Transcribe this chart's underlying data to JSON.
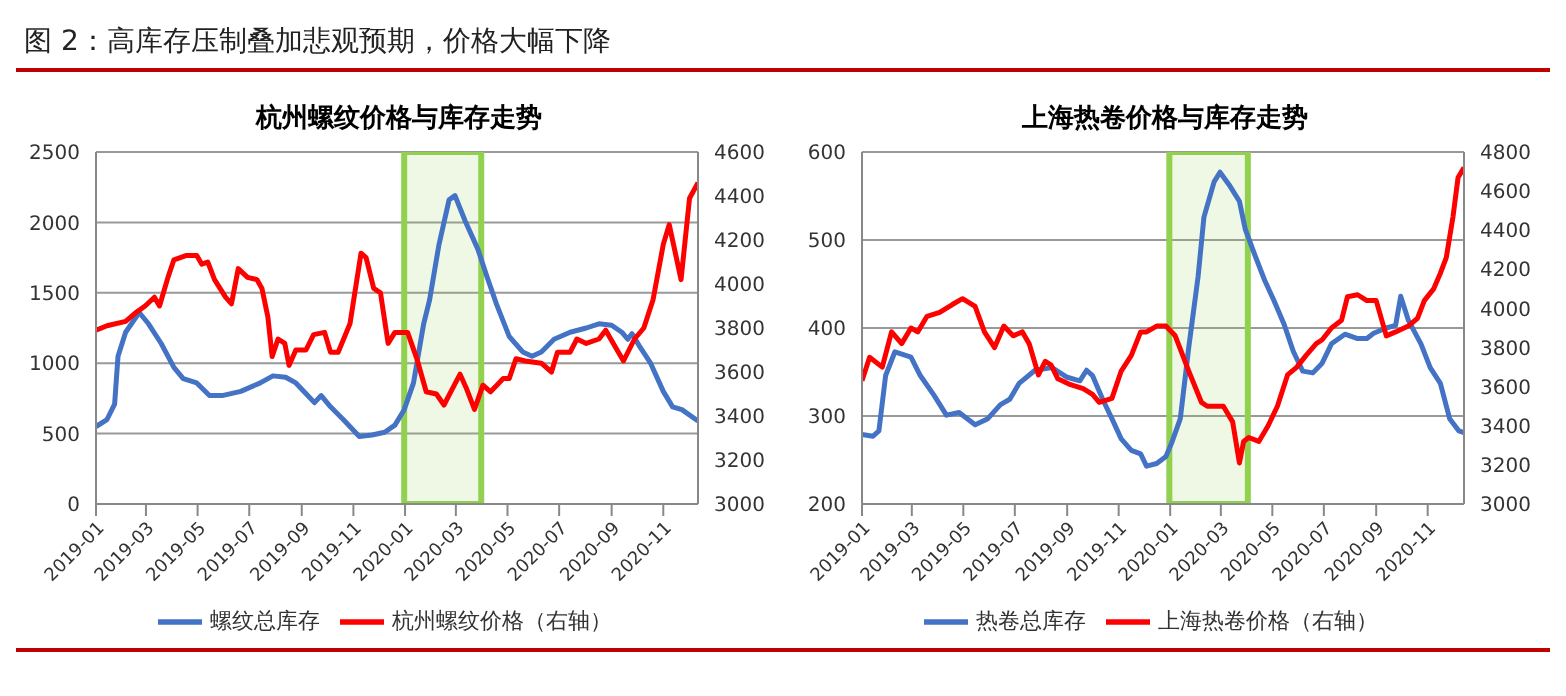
{
  "chart_data": [
    {
      "type": "line",
      "title": "杭州螺纹价格与库存走势",
      "annotations": [
        "图 2：高库存压制叠加悲观预期，价格大幅下降"
      ],
      "xlim": [
        "2019-01-01",
        "2020-12-12"
      ],
      "xticks": [
        "2019-01",
        "2019-03",
        "2019-05",
        "2019-07",
        "2019-09",
        "2019-11",
        "2020-01",
        "2020-03",
        "2020-05",
        "2020-07",
        "2020-09",
        "2020-11"
      ],
      "ylim": [
        0,
        2500
      ],
      "yticks": [
        0,
        500,
        1000,
        1500,
        2000,
        2500
      ],
      "y2lim": [
        3000,
        4600
      ],
      "y2ticks": [
        3000,
        3200,
        3400,
        3600,
        3800,
        4000,
        4200,
        4400,
        4600
      ],
      "grid": "y",
      "legend": "bottom",
      "marker": "none",
      "line_style": "solid",
      "bands": [
        {
          "axis": "x",
          "from": "2019-12-31",
          "to": "2020-03-31",
          "color": "#92d050"
        }
      ],
      "series": [
        {
          "name": "螺纹总库存",
          "color": "#4472c4",
          "x": [
            "2019-01-01",
            "2019-01-14",
            "2019-01-23",
            "2019-01-27",
            "2019-02-05",
            "2019-02-21",
            "2019-03-04",
            "2019-03-19",
            "2019-04-03",
            "2019-04-14",
            "2019-04-30",
            "2019-05-15",
            "2019-05-30",
            "2019-06-21",
            "2019-07-14",
            "2019-07-29",
            "2019-08-13",
            "2019-08-25",
            "2019-09-05",
            "2019-09-16",
            "2019-09-24",
            "2019-10-05",
            "2019-10-20",
            "2019-11-08",
            "2019-11-23",
            "2019-12-08",
            "2019-12-20",
            "2019-12-31",
            "2020-01-11",
            "2020-01-23",
            "2020-01-30",
            "2020-02-10",
            "2020-02-22",
            "2020-02-29",
            "2020-03-12",
            "2020-03-27",
            "2020-04-07",
            "2020-04-18",
            "2020-05-03",
            "2020-05-19",
            "2020-05-30",
            "2020-06-10",
            "2020-06-25",
            "2020-07-14",
            "2020-08-02",
            "2020-08-17",
            "2020-09-01",
            "2020-09-13",
            "2020-09-20",
            "2020-09-25",
            "2020-10-05",
            "2020-10-17",
            "2020-11-01",
            "2020-11-12",
            "2020-11-23",
            "2020-12-12"
          ],
          "values": [
            550,
            600,
            710,
            1050,
            1220,
            1360,
            1280,
            1140,
            970,
            890,
            860,
            770,
            770,
            800,
            860,
            910,
            900,
            860,
            790,
            720,
            770,
            690,
            600,
            480,
            490,
            510,
            560,
            670,
            860,
            1280,
            1450,
            1840,
            2160,
            2190,
            2010,
            1810,
            1610,
            1420,
            1190,
            1080,
            1050,
            1080,
            1170,
            1220,
            1250,
            1280,
            1270,
            1220,
            1170,
            1210,
            1110,
            1000,
            800,
            690,
            670,
            590
          ]
        },
        {
          "name": "杭州螺纹价格（右轴）",
          "color": "#ff0000",
          "axis": "y2",
          "x": [
            "2019-01-01",
            "2019-01-14",
            "2019-02-05",
            "2019-02-17",
            "2019-02-28",
            "2019-03-11",
            "2019-03-17",
            "2019-03-27",
            "2019-04-03",
            "2019-04-18",
            "2019-04-30",
            "2019-05-06",
            "2019-05-13",
            "2019-05-21",
            "2019-06-03",
            "2019-06-10",
            "2019-06-18",
            "2019-06-29",
            "2019-07-10",
            "2019-07-16",
            "2019-07-23",
            "2019-07-28",
            "2019-08-04",
            "2019-08-12",
            "2019-08-17",
            "2019-08-25",
            "2019-09-06",
            "2019-09-15",
            "2019-09-28",
            "2019-10-05",
            "2019-10-14",
            "2019-10-28",
            "2019-11-10",
            "2019-11-16",
            "2019-11-25",
            "2019-12-03",
            "2019-12-12",
            "2019-12-20",
            "2020-01-04",
            "2020-01-15",
            "2020-01-26",
            "2020-02-07",
            "2020-02-16",
            "2020-02-24",
            "2020-03-06",
            "2020-03-13",
            "2020-03-23",
            "2020-04-02",
            "2020-04-11",
            "2020-04-26",
            "2020-05-03",
            "2020-05-11",
            "2020-05-22",
            "2020-06-10",
            "2020-06-22",
            "2020-06-29",
            "2020-07-14",
            "2020-07-22",
            "2020-08-02",
            "2020-08-17",
            "2020-08-25",
            "2020-09-03",
            "2020-09-15",
            "2020-09-28",
            "2020-10-09",
            "2020-10-20",
            "2020-11-01",
            "2020-11-08",
            "2020-11-22",
            "2020-12-02",
            "2020-12-12"
          ],
          "values": [
            3790,
            3810,
            3830,
            3870,
            3900,
            3940,
            3900,
            4030,
            4110,
            4130,
            4130,
            4090,
            4100,
            4020,
            3940,
            3910,
            4070,
            4030,
            4020,
            3980,
            3850,
            3670,
            3750,
            3730,
            3630,
            3700,
            3700,
            3770,
            3780,
            3690,
            3690,
            3820,
            4140,
            4120,
            3980,
            3960,
            3730,
            3780,
            3780,
            3660,
            3510,
            3500,
            3450,
            3510,
            3590,
            3530,
            3430,
            3540,
            3510,
            3570,
            3570,
            3660,
            3650,
            3640,
            3600,
            3690,
            3690,
            3750,
            3730,
            3750,
            3790,
            3730,
            3650,
            3750,
            3800,
            3930,
            4180,
            4270,
            4020,
            4390,
            4460
          ]
        }
      ]
    },
    {
      "type": "line",
      "title": "上海热卷价格与库存走势",
      "xlim": [
        "2019-01-01",
        "2020-12-14"
      ],
      "xticks": [
        "2019-01",
        "2019-03",
        "2019-05",
        "2019-07",
        "2019-09",
        "2019-11",
        "2020-01",
        "2020-03",
        "2020-05",
        "2020-07",
        "2020-09",
        "2020-11"
      ],
      "ylim": [
        200,
        600
      ],
      "yticks": [
        200,
        300,
        400,
        500,
        600
      ],
      "y2lim": [
        3000,
        4800
      ],
      "y2ticks": [
        3000,
        3200,
        3400,
        3600,
        3800,
        4000,
        4200,
        4400,
        4600,
        4800
      ],
      "grid": "y",
      "legend": "bottom",
      "marker": "none",
      "line_style": "solid",
      "bands": [
        {
          "axis": "x",
          "from": "2019-12-31",
          "to": "2020-04-02",
          "color": "#92d050"
        }
      ],
      "series": [
        {
          "name": "热卷总库存",
          "color": "#4472c4",
          "x": [
            "2019-01-01",
            "2019-01-14",
            "2019-01-21",
            "2019-01-29",
            "2019-02-09",
            "2019-02-28",
            "2019-03-11",
            "2019-03-27",
            "2019-04-11",
            "2019-04-26",
            "2019-05-15",
            "2019-05-30",
            "2019-06-14",
            "2019-06-25",
            "2019-07-06",
            "2019-07-25",
            "2019-08-14",
            "2019-09-01",
            "2019-09-16",
            "2019-09-24",
            "2019-10-01",
            "2019-10-13",
            "2019-10-24",
            "2019-11-04",
            "2019-11-16",
            "2019-11-27",
            "2019-12-04",
            "2019-12-16",
            "2019-12-27",
            "2020-01-03",
            "2020-01-13",
            "2020-01-23",
            "2020-02-03",
            "2020-02-10",
            "2020-02-22",
            "2020-02-29",
            "2020-03-12",
            "2020-03-23",
            "2020-03-30",
            "2020-04-11",
            "2020-04-22",
            "2020-05-03",
            "2020-05-15",
            "2020-05-26",
            "2020-06-06",
            "2020-06-18",
            "2020-06-29",
            "2020-07-10",
            "2020-07-26",
            "2020-08-10",
            "2020-08-21",
            "2020-08-29",
            "2020-09-13",
            "2020-09-24",
            "2020-09-30",
            "2020-10-09",
            "2020-10-24",
            "2020-11-04",
            "2020-11-16",
            "2020-11-27",
            "2020-12-08",
            "2020-12-14"
          ],
          "values": [
            279,
            277,
            283,
            346,
            373,
            367,
            346,
            324,
            301,
            304,
            290,
            297,
            313,
            319,
            337,
            352,
            355,
            344,
            340,
            352,
            346,
            319,
            297,
            274,
            261,
            257,
            243,
            246,
            254,
            270,
            297,
            378,
            458,
            526,
            566,
            577,
            561,
            544,
            512,
            481,
            454,
            431,
            404,
            373,
            351,
            349,
            360,
            382,
            393,
            388,
            388,
            394,
            400,
            403,
            436,
            409,
            382,
            355,
            337,
            297,
            283,
            281
          ]
        },
        {
          "name": "上海热卷价格（右轴）",
          "color": "#ff0000",
          "axis": "y2",
          "x": [
            "2019-01-01",
            "2019-01-10",
            "2019-01-25",
            "2019-02-05",
            "2019-02-17",
            "2019-02-28",
            "2019-03-08",
            "2019-03-19",
            "2019-04-03",
            "2019-04-18",
            "2019-04-30",
            "2019-05-15",
            "2019-05-26",
            "2019-06-07",
            "2019-06-18",
            "2019-06-29",
            "2019-07-10",
            "2019-07-18",
            "2019-07-29",
            "2019-08-06",
            "2019-08-13",
            "2019-08-21",
            "2019-09-05",
            "2019-09-20",
            "2019-10-01",
            "2019-10-09",
            "2019-10-24",
            "2019-11-04",
            "2019-11-16",
            "2019-11-27",
            "2019-12-04",
            "2019-12-16",
            "2019-12-27",
            "2020-01-07",
            "2020-01-23",
            "2020-02-07",
            "2020-02-14",
            "2020-02-26",
            "2020-03-04",
            "2020-03-15",
            "2020-03-23",
            "2020-03-28",
            "2020-04-03",
            "2020-04-15",
            "2020-04-26",
            "2020-05-07",
            "2020-05-19",
            "2020-05-30",
            "2020-06-10",
            "2020-06-22",
            "2020-06-29",
            "2020-07-10",
            "2020-07-22",
            "2020-07-29",
            "2020-08-10",
            "2020-08-21",
            "2020-09-01",
            "2020-09-13",
            "2020-09-24",
            "2020-10-09",
            "2020-10-20",
            "2020-10-28",
            "2020-11-08",
            "2020-11-16",
            "2020-11-23",
            "2020-12-01",
            "2020-12-07",
            "2020-12-14"
          ],
          "values": [
            3630,
            3750,
            3700,
            3880,
            3820,
            3900,
            3880,
            3960,
            3980,
            4020,
            4050,
            4010,
            3880,
            3800,
            3910,
            3860,
            3880,
            3820,
            3660,
            3730,
            3710,
            3640,
            3610,
            3590,
            3560,
            3520,
            3540,
            3680,
            3760,
            3880,
            3880,
            3910,
            3910,
            3860,
            3680,
            3520,
            3500,
            3500,
            3500,
            3420,
            3210,
            3320,
            3340,
            3320,
            3400,
            3500,
            3660,
            3700,
            3760,
            3820,
            3840,
            3900,
            3940,
            4060,
            4070,
            4040,
            4040,
            3860,
            3880,
            3910,
            3950,
            4040,
            4100,
            4180,
            4260,
            4470,
            4670,
            4720
          ]
        }
      ]
    }
  ]
}
